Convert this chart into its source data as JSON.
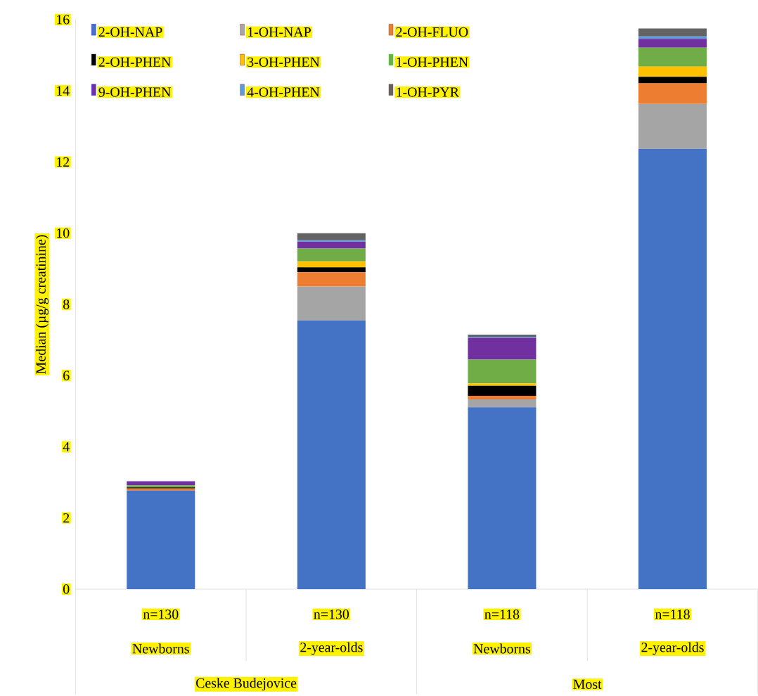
{
  "chart_data": {
    "type": "bar",
    "stacked": true,
    "ylabel": "Median (µg/g creatinine)",
    "categories": [
      "Newborns",
      "2-year-olds",
      "Newborns",
      "2-year-olds"
    ],
    "series": [
      {
        "name": "2-OH-NAP",
        "color": "#4472c4",
        "values": [
          2.77,
          7.55,
          5.11,
          12.37
        ]
      },
      {
        "name": "1-OH-NAP",
        "color": "#a5a5a5",
        "values": [
          null,
          0.95,
          0.22,
          1.26
        ]
      },
      {
        "name": "2-OH-FLUO",
        "color": "#ed7d31",
        "values": [
          0.06,
          0.4,
          0.1,
          0.58
        ]
      },
      {
        "name": "2-OH-PHEN",
        "color": "#000000",
        "values": [
          0.03,
          0.14,
          0.28,
          0.18
        ]
      },
      {
        "name": "3-OH-PHEN",
        "color": "#ffc000",
        "values": [
          0.0,
          0.17,
          0.07,
          0.29
        ]
      },
      {
        "name": "1-OH-PHEN",
        "color": "#70ad47",
        "values": [
          0.05,
          0.36,
          0.67,
          0.53
        ]
      },
      {
        "name": "9-OH-PHEN",
        "color": "#7030a0",
        "values": [
          0.12,
          0.19,
          0.61,
          0.25
        ]
      },
      {
        "name": "4-OH-PHEN",
        "color": "#5b9bd5",
        "values": [
          0.0,
          0.04,
          0.03,
          0.07
        ]
      },
      {
        "name": "1-OH-PYR",
        "color": "#636363",
        "values": [
          0.0,
          0.2,
          0.06,
          0.22
        ]
      }
    ],
    "ylim": [
      0,
      16
    ],
    "yticks": [
      0,
      2,
      4,
      6,
      8,
      10,
      12,
      14,
      16
    ],
    "grid": false,
    "legend": "top",
    "annotations": [
      "n=130",
      "n=130",
      "n=118",
      "n=118",
      "Ceske Budejovice",
      "Most"
    ]
  }
}
